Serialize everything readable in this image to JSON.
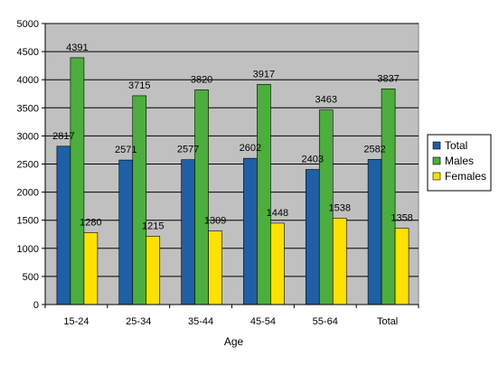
{
  "chart_data": {
    "type": "bar",
    "categories": [
      "15-24",
      "25-34",
      "35-44",
      "45-54",
      "55-64",
      "Total"
    ],
    "series": [
      {
        "name": "Total",
        "color": "#1f5fa6",
        "values": [
          2817,
          2571,
          2577,
          2602,
          2403,
          2582
        ]
      },
      {
        "name": "Males",
        "color": "#4cae3c",
        "values": [
          4391,
          3715,
          3820,
          3917,
          3463,
          3837
        ]
      },
      {
        "name": "Females",
        "color": "#ffe100",
        "values": [
          1280,
          1215,
          1309,
          1448,
          1538,
          1358
        ]
      }
    ],
    "xlabel": "Age",
    "ylabel": "",
    "ylim": [
      0,
      5000
    ],
    "yticks": [
      0,
      500,
      1000,
      1500,
      2000,
      2500,
      3000,
      3500,
      4000,
      4500,
      5000
    ],
    "plot_background": "#c0c0c0",
    "grid": true,
    "legend_position": "right"
  }
}
